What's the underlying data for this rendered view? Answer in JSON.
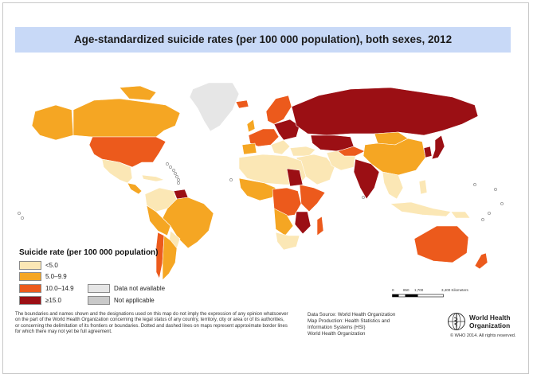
{
  "title": "Age-standardized suicide rates (per 100 000 population), both sexes, 2012",
  "colors": {
    "band_1": "#fbe7b5",
    "band_2": "#f5a623",
    "band_3": "#ec5a1c",
    "band_4": "#9b0f14",
    "no_data": "#e6e6e6",
    "not_applicable": "#c9c9c9",
    "water": "#ffffff",
    "title_bar": "#c8d9f7"
  },
  "legend": {
    "title": "Suicide rate (per 100 000 population)",
    "items": [
      {
        "label": "<5.0",
        "color": "#fbe7b5"
      },
      {
        "label": "5.0–9.9",
        "color": "#f5a623"
      },
      {
        "label": "10.0–14.9",
        "color": "#ec5a1c"
      },
      {
        "label": "≥15.0",
        "color": "#9b0f14"
      },
      {
        "label": "Data not available",
        "color": "#e6e6e6"
      },
      {
        "label": "Not applicable",
        "color": "#c9c9c9"
      }
    ]
  },
  "scale_bar": {
    "labels": [
      "0",
      "850",
      "1,700",
      "3,400 Kilometers"
    ]
  },
  "disclaimer": [
    "The boundaries and names shown and the designations used on this map do not imply the expression of any opinion whatsoever",
    "on the part of the World Health Organization concerning the legal status of any country, territory, city or area or of its authorities,",
    "or concerning the delimitation of its frontiers or boundaries. Dotted and dashed lines on maps represent approximate border lines",
    "for which there may not yet be full agreement."
  ],
  "source": [
    "Data Source: World Health Organization",
    "Map Production: Health Statistics and",
    "Information Systems (HSI)",
    "World Health Organization"
  ],
  "logo": {
    "line1": "World Health",
    "line2": "Organization",
    "icon": "who-emblem-icon"
  },
  "copyright": "© WHO 2014. All rights reserved."
}
